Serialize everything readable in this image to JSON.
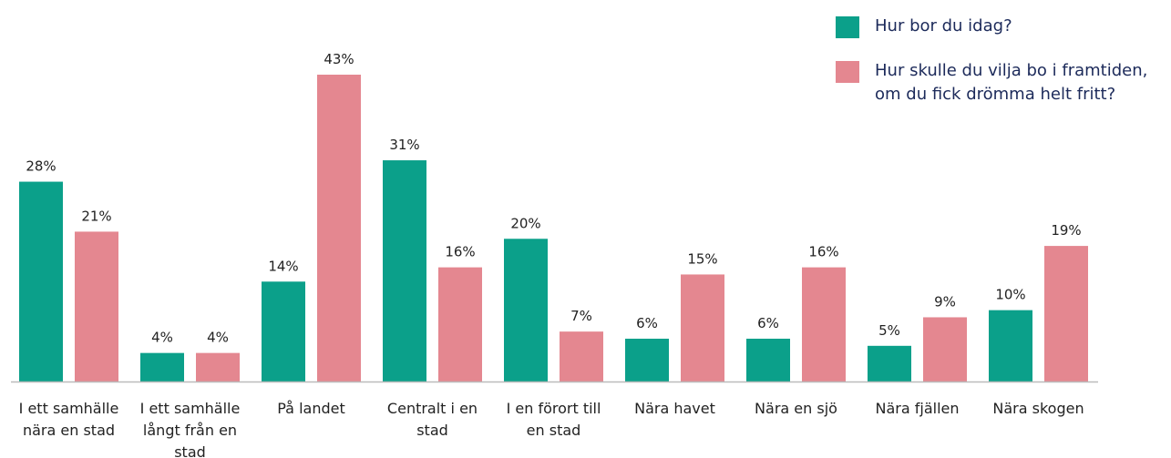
{
  "chart_data": {
    "type": "bar",
    "categories": [
      "I ett samhälle nära en stad",
      "I ett samhälle långt från en stad",
      "På landet",
      "Centralt i en stad",
      "I en förort till en stad",
      "Nära havet",
      "Nära en sjö",
      "Nära fjällen",
      "Nära skogen"
    ],
    "series": [
      {
        "name": "Hur bor du idag?",
        "color": "#0ba08a",
        "values": [
          28,
          4,
          14,
          31,
          20,
          6,
          6,
          5,
          10
        ],
        "value_labels": [
          "28%",
          "4%",
          "14%",
          "31%",
          "20%",
          "6%",
          "6%",
          "5%",
          "10%"
        ]
      },
      {
        "name": "Hur skulle du vilja bo i framtiden, om du fick drömma helt fritt?",
        "color": "#e48790",
        "values": [
          21,
          4,
          43,
          16,
          7,
          15,
          16,
          9,
          19
        ],
        "value_labels": [
          "21%",
          "4%",
          "43%",
          "16%",
          "7%",
          "15%",
          "16%",
          "9%",
          "19%"
        ]
      }
    ]
  }
}
